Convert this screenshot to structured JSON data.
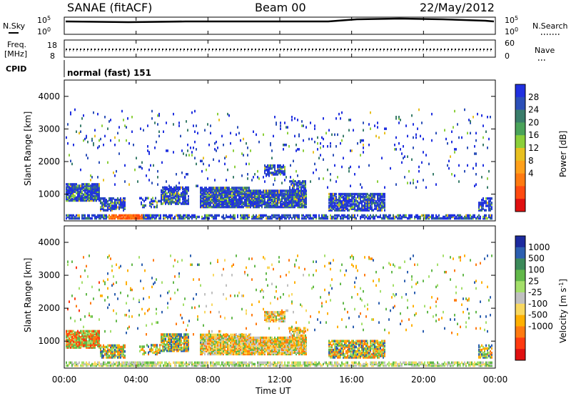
{
  "header": {
    "station": "SANAE (fitACF)",
    "beam": "Beam 00",
    "date": "22/May/2012"
  },
  "panels": {
    "nsky": {
      "left_label": "N.Sky",
      "right_label": "N.Search",
      "y_top": "10^5",
      "y_bottom": "10^0",
      "y_top_right": "10^5",
      "y_bottom_right": "10^0"
    },
    "freq": {
      "left_label_1": "Freq.",
      "left_label_2": "[MHz]",
      "y_top": "18",
      "y_bottom": "8",
      "y_top_right": "60",
      "y_bottom_right": "0",
      "right_label": "Nave"
    },
    "cpid": {
      "label": "CPID",
      "value": "normal (fast) 151"
    }
  },
  "chart_data": [
    {
      "type": "heatmap",
      "title": "",
      "xlabel": "Time UT",
      "ylabel": "Slant Range [km]",
      "y_ticks": [
        "1000",
        "2000",
        "3000",
        "4000"
      ],
      "colorbar_label": "Power [dB]",
      "colorbar_ticks": [
        "4",
        "8",
        "12",
        "16",
        "20",
        "24",
        "28"
      ],
      "colorbar_colors": [
        "#2030e0",
        "#2b4fb8",
        "#3a7d6b",
        "#4aa35a",
        "#8bcf3a",
        "#e8c020",
        "#ffa01a",
        "#ff7a10",
        "#ff4a10",
        "#e01010"
      ]
    },
    {
      "type": "heatmap",
      "title": "",
      "xlabel": "Time UT",
      "ylabel": "Slant Range [km]",
      "y_ticks": [
        "1000",
        "2000",
        "3000",
        "4000"
      ],
      "colorbar_label": "Velocity [m s^-1]",
      "colorbar_ticks": [
        "1000",
        "500",
        "100",
        "25",
        "-25",
        "-100",
        "-500",
        "-1000"
      ],
      "colorbar_colors": [
        "#1c2a9e",
        "#2c5fb0",
        "#3c8a5a",
        "#62b84a",
        "#a4df6a",
        "#c0c0c0",
        "#f8d860",
        "#ffb000",
        "#ff7a10",
        "#ff3a10",
        "#e01010"
      ]
    }
  ],
  "x_ticks": [
    "00:00",
    "04:00",
    "08:00",
    "12:00",
    "16:00",
    "20:00",
    "00:00"
  ],
  "xlabel": "Time UT"
}
